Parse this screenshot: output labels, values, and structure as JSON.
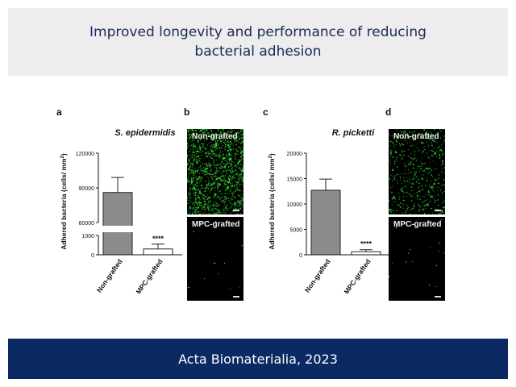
{
  "header": {
    "title": "Improved longevity and performance of reducing bacterial adhesion"
  },
  "footer": {
    "citation": "Acta Biomaterialia, 2023"
  },
  "panels": {
    "a": {
      "letter": "a"
    },
    "b": {
      "letter": "b",
      "top_label": "Non-grafted",
      "bottom_label": "MPC-grafted"
    },
    "c": {
      "letter": "c"
    },
    "d": {
      "letter": "d",
      "top_label": "Non-grafted",
      "bottom_label": "MPC-grafted"
    }
  },
  "colors": {
    "bar_fill": "#8c8c8c",
    "bar_stroke": "#222222",
    "header_bg": "#ededed",
    "footer_bg": "#0b2a63",
    "title_text": "#1a2a57",
    "fluor_green": "#3cd23c"
  },
  "chart_data": [
    {
      "type": "bar",
      "title": "S. epidermidis",
      "ylabel": "Adhered bacteria (cells/ mm²)",
      "ylabel_parts": [
        "Adhered bacteria (cells/ mm",
        "2",
        ")"
      ],
      "categories": [
        "Non-grafted",
        "MPC-grafted"
      ],
      "values": [
        86000,
        300
      ],
      "errors": [
        13000,
        250
      ],
      "axis_break": {
        "low_range": [
          0,
          1000
        ],
        "high_range": [
          60000,
          120000
        ]
      },
      "yticks_low": [
        "0",
        "1000"
      ],
      "yticks_high": [
        "60000",
        "90000",
        "120000"
      ],
      "significance": "****"
    },
    {
      "type": "bar",
      "title": "R. picketti",
      "ylabel": "Adhered bacteria (cells/ mm²)",
      "ylabel_parts": [
        "Adhered bacteria (cells/ mm",
        "2",
        ")"
      ],
      "categories": [
        "Non-grafted",
        "MPC-grafted"
      ],
      "values": [
        12700,
        600
      ],
      "errors": [
        2200,
        400
      ],
      "ylim": [
        0,
        20000
      ],
      "yticks": [
        "0",
        "5000",
        "10000",
        "15000",
        "20000"
      ],
      "significance": "****"
    }
  ]
}
